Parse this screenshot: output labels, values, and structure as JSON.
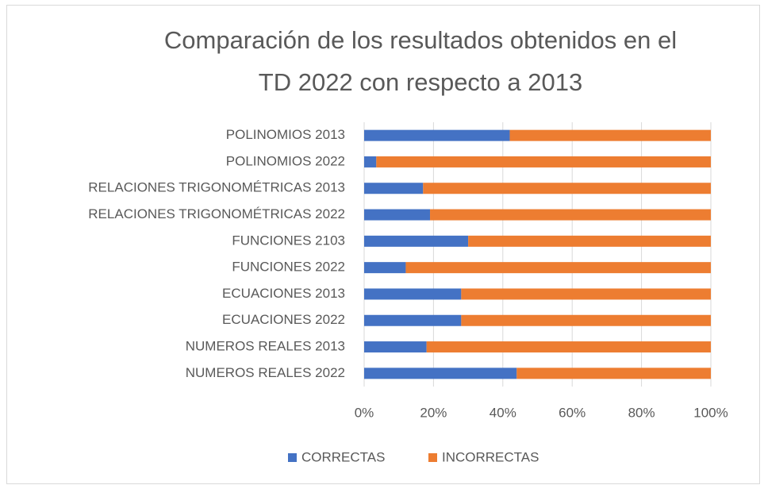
{
  "chart_data": {
    "type": "stacked_barh",
    "title": "Comparación de los resultados obtenidos en el\nTD 2022 con respecto a 2013",
    "categories": [
      "POLINOMIOS 2013",
      "POLINOMIOS 2022",
      "RELACIONES TRIGONOMÉTRICAS 2013",
      "RELACIONES TRIGONOMÉTRICAS 2022",
      "FUNCIONES 2103",
      "FUNCIONES 2022",
      "ECUACIONES 2013",
      "ECUACIONES 2022",
      "NUMEROS REALES 2013",
      "NUMEROS REALES 2022"
    ],
    "series": [
      {
        "name": "CORRECTAS",
        "color": "#4472c4",
        "values": [
          42,
          3.5,
          17,
          19,
          30,
          12,
          28,
          28,
          18,
          44
        ]
      },
      {
        "name": "INCORRECTAS",
        "color": "#ed7d31",
        "values": [
          58,
          96.5,
          83,
          81,
          70,
          88,
          72,
          72,
          82,
          56
        ]
      }
    ],
    "xlim": [
      0,
      100
    ],
    "xticks": [
      {
        "value": 0,
        "label": "0%"
      },
      {
        "value": 20,
        "label": "20%"
      },
      {
        "value": 40,
        "label": "40%"
      },
      {
        "value": 60,
        "label": "60%"
      },
      {
        "value": 80,
        "label": "80%"
      },
      {
        "value": 100,
        "label": "100%"
      }
    ],
    "grid": true,
    "legend": "bottom"
  }
}
